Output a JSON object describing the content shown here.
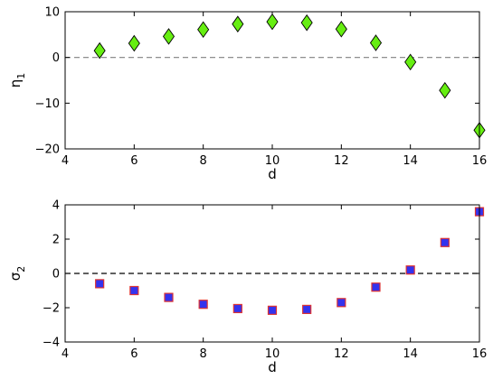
{
  "chart_data": [
    {
      "type": "scatter",
      "title": "",
      "xlabel": "d",
      "ylabel": "η",
      "ylabel_sub": "1",
      "xlim": [
        4,
        16
      ],
      "ylim": [
        -20,
        10
      ],
      "xticks": [
        4,
        6,
        8,
        10,
        12,
        14,
        16
      ],
      "yticks": [
        -20,
        -10,
        0,
        10
      ],
      "xtick_labels": [
        "4",
        "6",
        "8",
        "10",
        "12",
        "14",
        "16"
      ],
      "ytick_labels": [
        "−20",
        "−10",
        "0",
        "10"
      ],
      "reference_line": {
        "y": 0,
        "style": "dashed",
        "color": "#808080"
      },
      "marker": {
        "shape": "diamond",
        "fill": "#66ee11",
        "edge": "#000000"
      },
      "grid": false,
      "series": [
        {
          "x": [
            5,
            6,
            7,
            8,
            9,
            10,
            11,
            12,
            13,
            14,
            15,
            16
          ],
          "y": [
            1.5,
            3.1,
            4.6,
            6.1,
            7.3,
            7.8,
            7.6,
            6.2,
            3.2,
            -1.0,
            -7.2,
            -15.9
          ]
        }
      ]
    },
    {
      "type": "scatter",
      "title": "",
      "xlabel": "d",
      "ylabel": "σ",
      "ylabel_sub": "2",
      "xlim": [
        4,
        16
      ],
      "ylim": [
        -4,
        4
      ],
      "xticks": [
        4,
        6,
        8,
        10,
        12,
        14,
        16
      ],
      "yticks": [
        -4,
        -2,
        0,
        2,
        4
      ],
      "xtick_labels": [
        "4",
        "6",
        "8",
        "10",
        "12",
        "14",
        "16"
      ],
      "ytick_labels": [
        "−4",
        "−2",
        "0",
        "2",
        "4"
      ],
      "reference_line": {
        "y": 0,
        "style": "dashed",
        "color": "#000000"
      },
      "marker": {
        "shape": "square",
        "fill": "#3333ee",
        "edge": "#dd3333"
      },
      "grid": false,
      "series": [
        {
          "x": [
            5,
            6,
            7,
            8,
            9,
            10,
            11,
            12,
            13,
            14,
            15,
            16
          ],
          "y": [
            -0.6,
            -1.0,
            -1.4,
            -1.8,
            -2.05,
            -2.15,
            -2.1,
            -1.7,
            -0.8,
            0.2,
            1.8,
            3.6
          ]
        }
      ]
    }
  ]
}
